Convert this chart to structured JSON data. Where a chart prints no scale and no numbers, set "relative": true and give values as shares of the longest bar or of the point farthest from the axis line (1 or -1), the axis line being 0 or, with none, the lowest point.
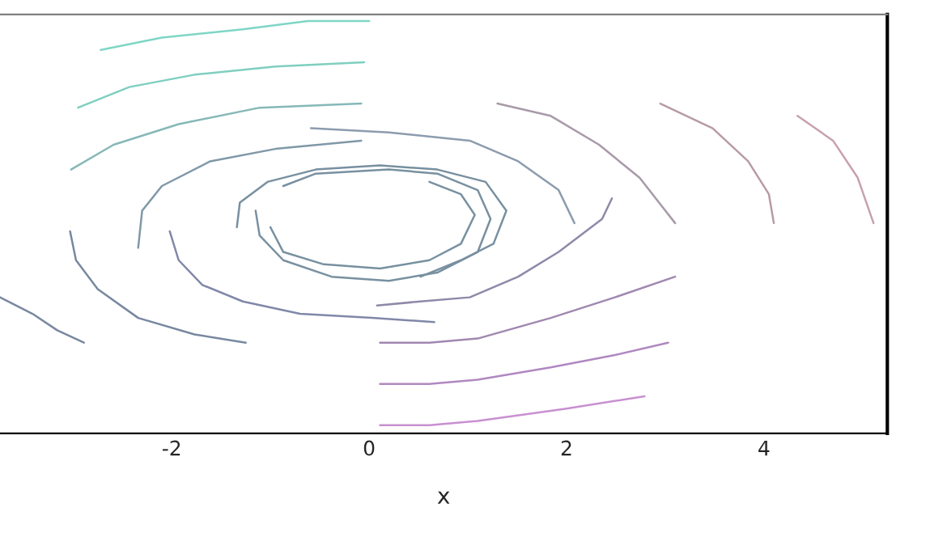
{
  "chart_data": {
    "type": "line",
    "relative": true,
    "xlabel": "x",
    "xlim": [
      -3.74,
      5.25
    ],
    "xticks": [
      -2,
      0,
      2,
      4
    ],
    "tick_labels": "x",
    "grid": false,
    "legend": false,
    "line_style": "solid",
    "marker": "none",
    "series": [
      {
        "color": "#7fd6c6",
        "x": [
          -2.72,
          -2.1,
          -1.28,
          -0.62,
          0
        ],
        "values": [
          0.93,
          0.96,
          0.98,
          1.0,
          1.0
        ]
      },
      {
        "color": "#7fcfc0",
        "x": [
          -2.95,
          -2.43,
          -1.77,
          -0.95,
          -0.05
        ],
        "values": [
          0.79,
          0.84,
          0.87,
          0.89,
          0.9
        ]
      },
      {
        "color": "#86b8b8",
        "x": [
          -3.02,
          -2.59,
          -1.93,
          -1.11,
          -0.08
        ],
        "values": [
          0.64,
          0.7,
          0.75,
          0.79,
          0.8
        ]
      },
      {
        "color": "#8c9cae",
        "x": [
          -0.59,
          0.2,
          1.02,
          1.51,
          1.92,
          2.08
        ],
        "values": [
          0.74,
          0.73,
          0.71,
          0.66,
          0.59,
          0.51
        ]
      },
      {
        "color": "#8098a8",
        "x": [
          -2.34,
          -2.3,
          -2.1,
          -1.61,
          -0.95,
          -0.08
        ],
        "values": [
          0.45,
          0.54,
          0.6,
          0.66,
          0.69,
          0.71
        ]
      },
      {
        "color": "#7888a0",
        "x": [
          -3.03,
          -2.97,
          -2.75,
          -2.34,
          -1.77,
          -1.25
        ],
        "values": [
          0.49,
          0.42,
          0.35,
          0.28,
          0.24,
          0.22
        ]
      },
      {
        "color": "#7888a0",
        "x": [
          -3.74,
          -3.41,
          -3.16,
          -2.89
        ],
        "values": [
          0.33,
          0.29,
          0.25,
          0.22
        ]
      },
      {
        "color": "#8088a8",
        "x": [
          -2.02,
          -1.93,
          -1.69,
          -1.28,
          -0.7,
          0.03,
          0.66
        ],
        "values": [
          0.49,
          0.42,
          0.36,
          0.32,
          0.29,
          0.28,
          0.27
        ]
      },
      {
        "color": "#9088a8",
        "x": [
          0.08,
          0.52,
          1.02,
          1.51,
          1.92,
          2.36,
          2.46
        ],
        "values": [
          0.31,
          0.32,
          0.33,
          0.38,
          0.44,
          0.52,
          0.57
        ]
      },
      {
        "color": "#a088b0",
        "x": [
          0.11,
          0.61,
          1.1,
          1.84,
          2.49,
          3.1
        ],
        "values": [
          0.22,
          0.22,
          0.23,
          0.28,
          0.33,
          0.38
        ]
      },
      {
        "color": "#b088c0",
        "x": [
          0.11,
          0.61,
          1.1,
          1.84,
          2.49,
          3.03
        ],
        "values": [
          0.12,
          0.12,
          0.13,
          0.16,
          0.19,
          0.22
        ]
      },
      {
        "color": "#c890d0",
        "x": [
          0.11,
          0.61,
          1.1,
          2.0,
          2.79
        ],
        "values": [
          0.02,
          0.02,
          0.03,
          0.06,
          0.09
        ]
      },
      {
        "color": "#7890a0",
        "x": [
          -1.0,
          -0.87,
          -0.46,
          0.11,
          0.61,
          0.93,
          1.07,
          0.93,
          0.61
        ],
        "values": [
          0.5,
          0.44,
          0.41,
          0.4,
          0.42,
          0.46,
          0.53,
          0.58,
          0.61
        ]
      },
      {
        "color": "#7890a0",
        "x": [
          -1.15,
          -1.11,
          -0.87,
          -0.38,
          0.2,
          0.69,
          1.1,
          1.23,
          1.1,
          0.69,
          0.2,
          -0.54,
          -0.87
        ],
        "values": [
          0.54,
          0.48,
          0.42,
          0.38,
          0.37,
          0.39,
          0.44,
          0.52,
          0.59,
          0.63,
          0.64,
          0.63,
          0.6
        ]
      },
      {
        "color": "#7890a0",
        "x": [
          -1.34,
          -1.31,
          -1.03,
          -0.54,
          0.11,
          0.69,
          1.18,
          1.39,
          1.26,
          0.93,
          0.52
        ],
        "values": [
          0.5,
          0.56,
          0.61,
          0.64,
          0.65,
          0.64,
          0.61,
          0.54,
          0.46,
          0.42,
          0.38
        ]
      },
      {
        "color": "#a89aa8",
        "x": [
          1.3,
          1.84,
          2.33,
          2.74,
          3.1
        ],
        "values": [
          0.8,
          0.77,
          0.7,
          0.62,
          0.51
        ]
      },
      {
        "color": "#b89aa8",
        "x": [
          2.95,
          3.48,
          3.84,
          4.05,
          4.1
        ],
        "values": [
          0.8,
          0.74,
          0.66,
          0.58,
          0.51
        ]
      },
      {
        "color": "#c8a0b0",
        "x": [
          4.34,
          4.7,
          4.95,
          5.11
        ],
        "values": [
          0.77,
          0.71,
          0.62,
          0.51
        ]
      }
    ]
  }
}
